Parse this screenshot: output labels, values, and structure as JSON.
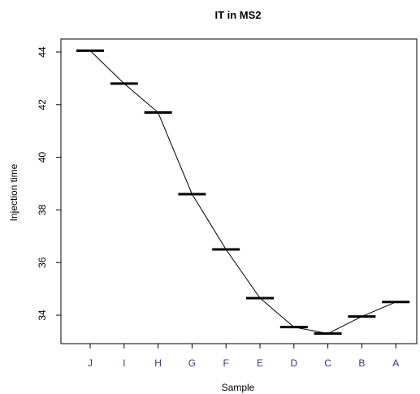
{
  "chart_data": {
    "type": "line",
    "title": "IT in MS2",
    "xlabel": "Sample",
    "ylabel": "Injection time",
    "categories": [
      "J",
      "I",
      "H",
      "G",
      "F",
      "E",
      "D",
      "C",
      "B",
      "A"
    ],
    "series": [
      {
        "values": [
          44.05,
          42.8,
          41.7,
          38.6,
          36.5,
          34.65,
          33.55,
          33.3,
          33.95,
          34.5
        ]
      }
    ],
    "markers": "horizontal-bar",
    "yticks": [
      34,
      36,
      38,
      40,
      42,
      44
    ],
    "ylim": [
      32.9,
      44.5
    ],
    "grid": false,
    "legend": "none"
  }
}
